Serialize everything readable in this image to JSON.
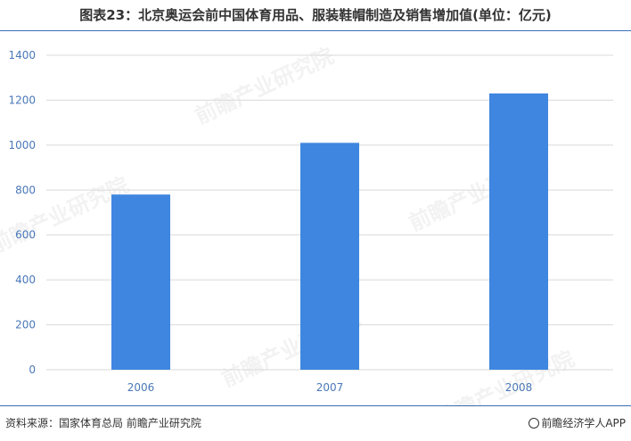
{
  "title": "图表23：北京奥运会前中国体育用品、服装鞋帽制造及销售增加值(单位：亿元)",
  "footer": {
    "source": "资料来源：国家体育总局 前瞻产业研究院",
    "brand": "前瞻经济学人APP"
  },
  "watermark": "前瞻产业研究院",
  "colors": {
    "bar": "#3f86e0",
    "tick": "#4a78b8",
    "grid": "#d9d9d9",
    "frame": "#3a6fb6"
  },
  "chart_data": {
    "type": "bar",
    "title": "图表23：北京奥运会前中国体育用品、服装鞋帽制造及销售增加值(单位：亿元)",
    "categories": [
      "2006",
      "2007",
      "2008"
    ],
    "values": [
      780,
      1010,
      1230
    ],
    "ylim": [
      0,
      1400
    ],
    "yticks": [
      0,
      200,
      400,
      600,
      800,
      1000,
      1200,
      1400
    ],
    "grid": true,
    "legend": "none",
    "xlabel": "",
    "ylabel": ""
  }
}
